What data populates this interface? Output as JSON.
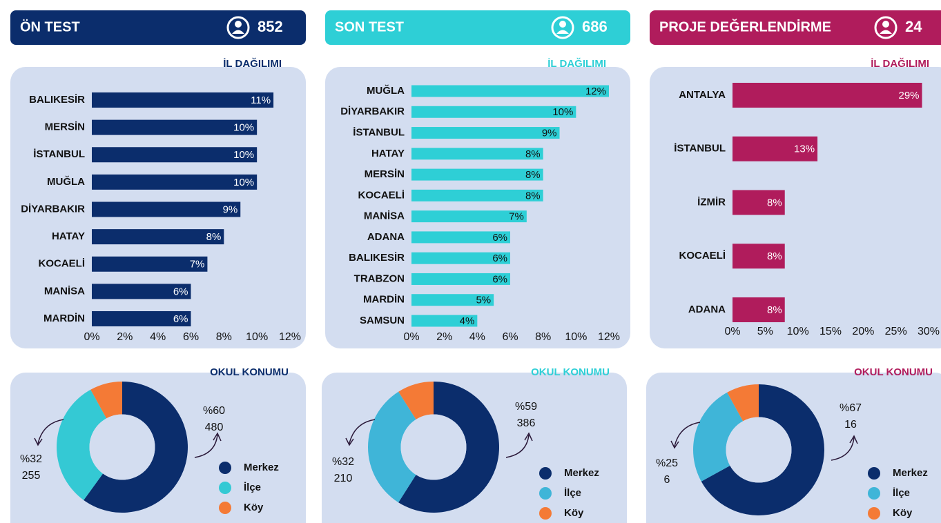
{
  "headers": [
    {
      "title": "ÖN TEST",
      "count": 852,
      "color": "#0b2d6c"
    },
    {
      "title": "SON TEST",
      "count": 686,
      "color": "#2ecfd6"
    },
    {
      "title": "PROJE DEĞERLENDİRME",
      "count": 24,
      "color": "#b01c5c"
    }
  ],
  "chart_data": [
    {
      "type": "bar",
      "orientation": "horizontal",
      "title": "İL DAĞILIMI",
      "color": "#0b2d6c",
      "label_color": "#ffffff",
      "categories": [
        "BALIKESİR",
        "MERSİN",
        "İSTANBUL",
        "MUĞLA",
        "DİYARBAKIR",
        "HATAY",
        "KOCAELİ",
        "MANİSA",
        "MARDİN"
      ],
      "values": [
        11,
        10,
        10,
        10,
        9,
        8,
        7,
        6,
        6
      ],
      "value_labels": [
        "11%",
        "10%",
        "10%",
        "10%",
        "9%",
        "8%",
        "7%",
        "6%",
        "6%"
      ],
      "xlim": [
        0,
        12
      ],
      "xticks": [
        {
          "value": 0,
          "label": "0%"
        },
        {
          "value": 2,
          "label": "2%"
        },
        {
          "value": 4,
          "label": "4%"
        },
        {
          "value": 6,
          "label": "6%"
        },
        {
          "value": 8,
          "label": "8%"
        },
        {
          "value": 10,
          "label": "10%"
        },
        {
          "value": 12,
          "label": "12%"
        }
      ]
    },
    {
      "type": "pie",
      "title": "OKUL KONUMU",
      "hole": 0.5,
      "labels": [
        "Merkez",
        "İlçe",
        "Köy"
      ],
      "values": [
        60,
        32,
        8
      ],
      "value_labels": [
        "%60",
        "%32",
        null
      ],
      "counts": [
        480,
        255,
        null
      ],
      "colors": [
        "#0b2d6c",
        "#34c9d4",
        "#f47a36"
      ]
    },
    {
      "type": "bar",
      "orientation": "horizontal",
      "title": "İL DAĞILIMI",
      "color": "#2ecfd6",
      "label_color": "#111111",
      "categories": [
        "MUĞLA",
        "DİYARBAKIR",
        "İSTANBUL",
        "HATAY",
        "MERSİN",
        "KOCAELİ",
        "MANİSA",
        "ADANA",
        "BALIKESİR",
        "TRABZON",
        "MARDİN",
        "SAMSUN"
      ],
      "values": [
        12,
        10,
        9,
        8,
        8,
        8,
        7,
        6,
        6,
        6,
        5,
        4
      ],
      "value_labels": [
        "12%",
        "10%",
        "9%",
        "8%",
        "8%",
        "8%",
        "7%",
        "6%",
        "6%",
        "6%",
        "5%",
        "4%"
      ],
      "xlim": [
        0,
        12
      ],
      "xticks": [
        {
          "value": 0,
          "label": "0%"
        },
        {
          "value": 2,
          "label": "2%"
        },
        {
          "value": 4,
          "label": "4%"
        },
        {
          "value": 6,
          "label": "6%"
        },
        {
          "value": 8,
          "label": "8%"
        },
        {
          "value": 10,
          "label": "10%"
        },
        {
          "value": 12,
          "label": "12%"
        }
      ]
    },
    {
      "type": "pie",
      "title": "OKUL KONUMU",
      "hole": 0.5,
      "labels": [
        "Merkez",
        "İlçe",
        "Köy"
      ],
      "values": [
        59,
        32,
        9
      ],
      "value_labels": [
        "%59",
        "%32",
        null
      ],
      "counts": [
        386,
        210,
        null
      ],
      "colors": [
        "#0b2d6c",
        "#3fb5d8",
        "#f47a36"
      ]
    },
    {
      "type": "bar",
      "orientation": "horizontal",
      "title": "İL DAĞILIMI",
      "color": "#b01c5c",
      "label_color": "#ffffff",
      "categories": [
        "ANTALYA",
        "İSTANBUL",
        "İZMİR",
        "KOCAELİ",
        "ADANA"
      ],
      "values": [
        29,
        13,
        8,
        8,
        8
      ],
      "value_labels": [
        "29%",
        "13%",
        "8%",
        "8%",
        "8%"
      ],
      "xlim": [
        0,
        30
      ],
      "xticks": [
        {
          "value": 0,
          "label": "0%"
        },
        {
          "value": 5,
          "label": "5%"
        },
        {
          "value": 10,
          "label": "10%"
        },
        {
          "value": 15,
          "label": "15%"
        },
        {
          "value": 20,
          "label": "20%"
        },
        {
          "value": 25,
          "label": "25%"
        },
        {
          "value": 30,
          "label": "30%"
        }
      ]
    },
    {
      "type": "pie",
      "title": "OKUL KONUMU",
      "hole": 0.5,
      "labels": [
        "Merkez",
        "İlçe",
        "Köy"
      ],
      "values": [
        67,
        25,
        8
      ],
      "value_labels": [
        "%67",
        "%25",
        null
      ],
      "counts": [
        16,
        6,
        null
      ],
      "colors": [
        "#0b2d6c",
        "#3fb5d8",
        "#f47a36"
      ]
    }
  ]
}
